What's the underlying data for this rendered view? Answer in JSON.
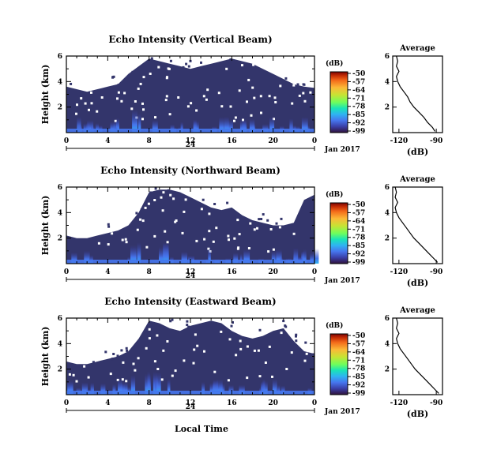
{
  "chart_data": [
    {
      "type": "heatmap",
      "title": "Echo Intensity (Vertical Beam)",
      "ylabel": "Height (km)",
      "yticks": [
        "2",
        "4",
        "6"
      ],
      "xticks": [
        "0",
        "4",
        "8",
        "12",
        "16",
        "20",
        "0"
      ],
      "xrange": [
        0,
        24
      ],
      "ylim": [
        0,
        6
      ],
      "date_label": "24",
      "month_label": "Jan 2017",
      "colorbar": {
        "title": "(dB)",
        "ticks": [
          "-50",
          "-57",
          "-64",
          "-71",
          "-78",
          "-85",
          "-92",
          "-99"
        ]
      },
      "profile": {
        "title": "Average",
        "xlabel": "(dB)",
        "xticks": [
          "-120",
          "-90"
        ],
        "yticks": [
          "2",
          "4",
          "6"
        ],
        "points": [
          [
            -91,
            0.1
          ],
          [
            -93,
            0.4
          ],
          [
            -97,
            0.8
          ],
          [
            -100,
            1.2
          ],
          [
            -104,
            1.6
          ],
          [
            -108,
            2.0
          ],
          [
            -111,
            2.4
          ],
          [
            -113,
            2.8
          ],
          [
            -116,
            3.2
          ],
          [
            -119,
            3.6
          ],
          [
            -121,
            4.0
          ],
          [
            -122,
            4.4
          ],
          [
            -120,
            4.8
          ],
          [
            -122,
            5.2
          ],
          [
            -121,
            5.6
          ],
          [
            -122,
            6.0
          ]
        ]
      }
    },
    {
      "type": "heatmap",
      "title": "Echo Intensity (Northward Beam)",
      "ylabel": "Height (km)",
      "yticks": [
        "2",
        "4",
        "6"
      ],
      "xticks": [
        "0",
        "4",
        "8",
        "12",
        "16",
        "20",
        "0"
      ],
      "xrange": [
        0,
        24
      ],
      "ylim": [
        0,
        6
      ],
      "date_label": "24",
      "month_label": "Jan 2017",
      "colorbar": {
        "title": "(dB)",
        "ticks": [
          "-50",
          "-57",
          "-64",
          "-71",
          "-78",
          "-85",
          "-92",
          "-99"
        ]
      },
      "profile": {
        "title": "Average",
        "xlabel": "(dB)",
        "xticks": [
          "-120",
          "-90"
        ],
        "yticks": [
          "2",
          "4",
          "6"
        ],
        "points": [
          [
            -89,
            0.1
          ],
          [
            -92,
            0.4
          ],
          [
            -96,
            0.8
          ],
          [
            -100,
            1.2
          ],
          [
            -104,
            1.6
          ],
          [
            -108,
            2.0
          ],
          [
            -111,
            2.4
          ],
          [
            -114,
            2.8
          ],
          [
            -117,
            3.2
          ],
          [
            -120,
            3.6
          ],
          [
            -122,
            4.0
          ],
          [
            -123,
            4.4
          ],
          [
            -121,
            4.8
          ],
          [
            -123,
            5.2
          ],
          [
            -122,
            5.6
          ],
          [
            -123,
            6.0
          ]
        ]
      }
    },
    {
      "type": "heatmap",
      "title": "Echo Intensity (Eastward Beam)",
      "ylabel": "Height (km)",
      "yticks": [
        "2",
        "4",
        "6"
      ],
      "xticks": [
        "0",
        "4",
        "8",
        "12",
        "16",
        "20",
        "0"
      ],
      "xrange": [
        0,
        24
      ],
      "ylim": [
        0,
        6
      ],
      "date_label": "24",
      "month_label": "Jan 2017",
      "colorbar": {
        "title": "(dB)",
        "ticks": [
          "-50",
          "-57",
          "-64",
          "-71",
          "-78",
          "-85",
          "-92",
          "-99"
        ]
      },
      "profile": {
        "title": "Average",
        "xlabel": "(dB)",
        "xticks": [
          "-120",
          "-90"
        ],
        "yticks": [
          "2",
          "4",
          "6"
        ],
        "points": [
          [
            -88,
            0.1
          ],
          [
            -91,
            0.4
          ],
          [
            -95,
            0.8
          ],
          [
            -99,
            1.2
          ],
          [
            -103,
            1.6
          ],
          [
            -107,
            2.0
          ],
          [
            -110,
            2.4
          ],
          [
            -113,
            2.8
          ],
          [
            -116,
            3.2
          ],
          [
            -119,
            3.6
          ],
          [
            -121,
            4.0
          ],
          [
            -122,
            4.4
          ],
          [
            -120,
            4.8
          ],
          [
            -122,
            5.2
          ],
          [
            -121,
            5.6
          ],
          [
            -122,
            6.0
          ]
        ]
      }
    }
  ],
  "xlabel": "Local Time",
  "colors": {
    "background_echo": "#33356b",
    "colormap": [
      "#30123b",
      "#3a3fa8",
      "#4675ed",
      "#2fb3f2",
      "#1ae4b6",
      "#70fe5b",
      "#c6e434",
      "#fbb938",
      "#f36a1a",
      "#c22a05",
      "#7a0403"
    ]
  }
}
